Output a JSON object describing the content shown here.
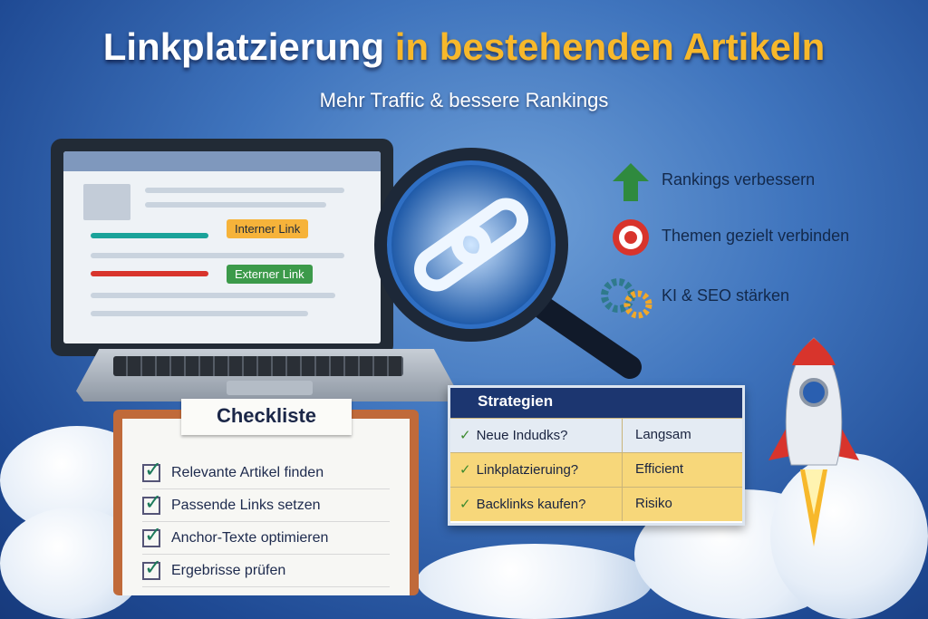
{
  "title": {
    "part1": "Linkplatzierung",
    "part2": "in bestehenden Artikeln"
  },
  "subtitle": "Mehr Traffic & bessere Rankings",
  "laptop": {
    "internal_link": "Interner Link",
    "external_link": "Externer Link"
  },
  "benefits": [
    {
      "icon": "arrow-up-icon",
      "label": "Rankings verbessern"
    },
    {
      "icon": "target-icon",
      "label": "Themen gezielt verbinden"
    },
    {
      "icon": "gears-icon",
      "label": "KI & SEO stärken"
    }
  ],
  "strategies": {
    "title": "Strategien",
    "rows": [
      {
        "strategy": "Neue Indudks?",
        "rating": "Langsam"
      },
      {
        "strategy": "Linkplatzieruing?",
        "rating": "Efficient"
      },
      {
        "strategy": "Backlinks kaufen?",
        "rating": "Risiko"
      }
    ]
  },
  "checklist": {
    "title": "Checkliste",
    "items": [
      "Relevante Artikel finden",
      "Passende Links setzen",
      "Anchor-Texte optimieren",
      "Ergebrisse prüfen"
    ]
  },
  "colors": {
    "accent": "#f7b82b",
    "background": "#3f74bd",
    "internal": "#1aa39a",
    "external": "#d8342c"
  }
}
